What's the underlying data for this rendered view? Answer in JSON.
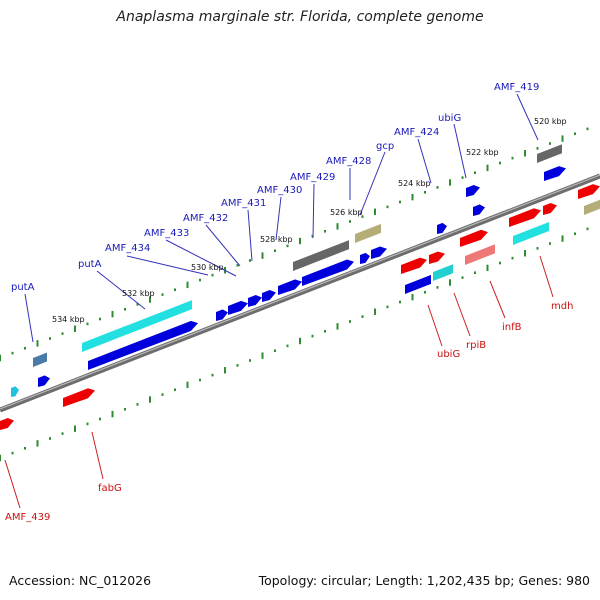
{
  "header": {
    "title": "Anaplasma marginale str. Florida, complete genome"
  },
  "footer": {
    "accession": "Accession: NC_012026",
    "summary": "Topology: circular; Length: 1,202,435 bp; Genes: 980"
  },
  "colors": {
    "backbone": "#808080",
    "tick": "#2e8b2e",
    "blue": "#0000dd",
    "red": "#ee0000",
    "cyan": "#22e0e0",
    "gray": "#666666",
    "khaki": "#b5ad78",
    "pink": "#ee7777",
    "label_blue": "#1a1ab8",
    "label_red": "#cc1111"
  },
  "kbp_labels": [
    "520 kbp",
    "522 kbp",
    "524 kbp",
    "526 kbp",
    "528 kbp",
    "530 kbp",
    "532 kbp",
    "534 kbp"
  ],
  "gene_labels_top": [
    "AMF_419",
    "ubiG",
    "AMF_424",
    "gcp",
    "AMF_428",
    "AMF_429",
    "AMF_430",
    "AMF_431",
    "AMF_432",
    "AMF_433",
    "AMF_434",
    "putA",
    "putA"
  ],
  "gene_labels_bottom": [
    "mdh",
    "infB",
    "rpiB",
    "ubiG",
    "fabG",
    "AMF_439"
  ]
}
